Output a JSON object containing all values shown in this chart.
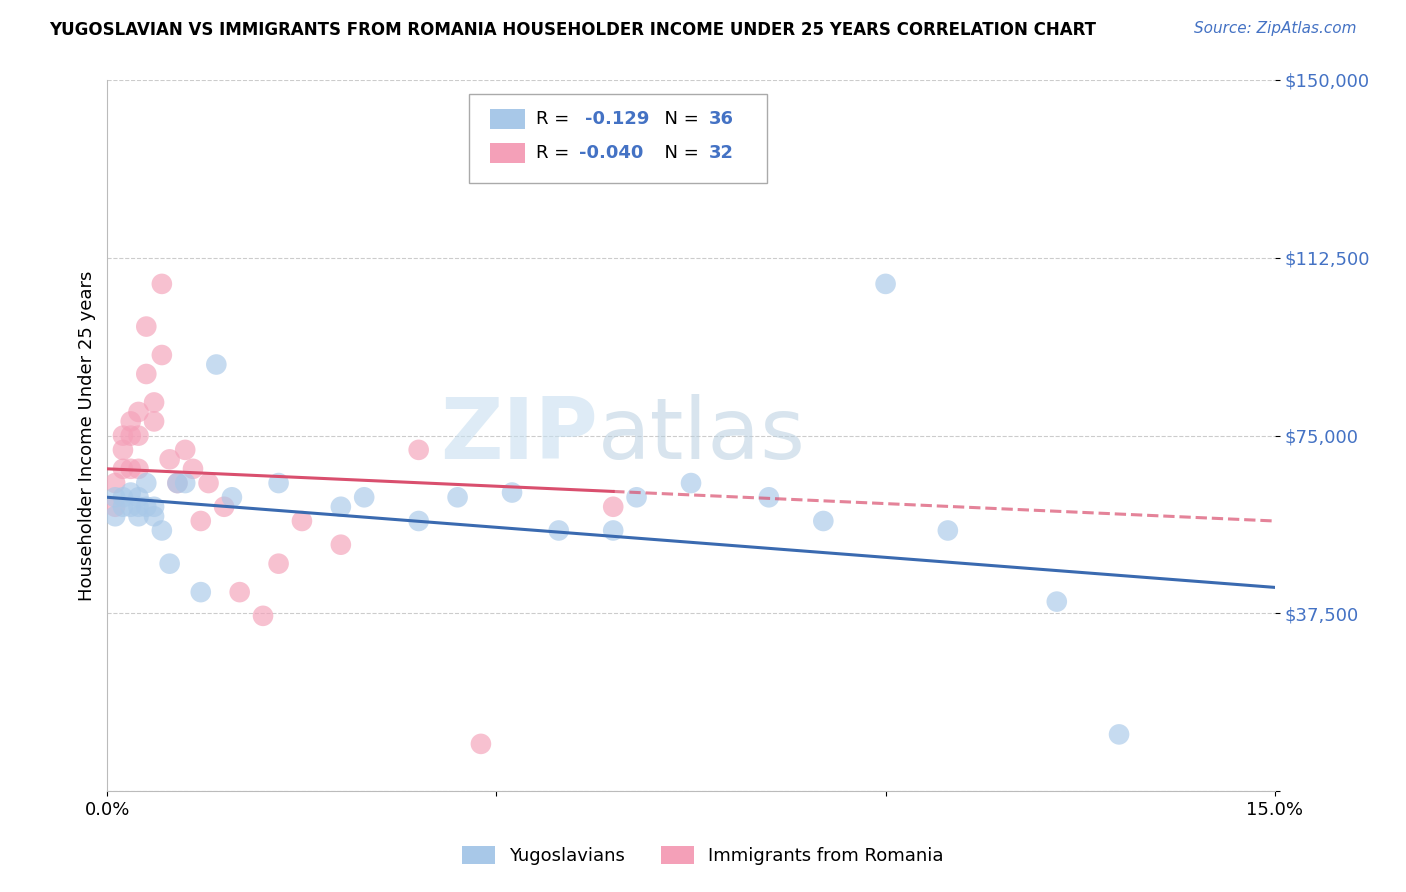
{
  "title": "YUGOSLAVIAN VS IMMIGRANTS FROM ROMANIA HOUSEHOLDER INCOME UNDER 25 YEARS CORRELATION CHART",
  "source": "Source: ZipAtlas.com",
  "ylabel": "Householder Income Under 25 years",
  "xlim": [
    0,
    0.15
  ],
  "ylim": [
    0,
    150000
  ],
  "yticks": [
    0,
    37500,
    75000,
    112500,
    150000
  ],
  "xtick_positions": [
    0,
    0.05,
    0.1,
    0.15
  ],
  "xtick_labels": [
    "0.0%",
    "",
    "",
    "15.0%"
  ],
  "watermark_zip": "ZIP",
  "watermark_atlas": "atlas",
  "legend_label1": "Yugoslavians",
  "legend_label2": "Immigrants from Romania",
  "blue_color": "#a8c8e8",
  "pink_color": "#f4a0b8",
  "blue_line_color": "#3a6ab0",
  "pink_line_color": "#d94f6e",
  "accent_color": "#4472c4",
  "R_blue_text": "-0.129",
  "N_blue_text": "36",
  "R_pink_text": "-0.040",
  "N_pink_text": "32",
  "blue_x": [
    0.001,
    0.001,
    0.002,
    0.002,
    0.003,
    0.003,
    0.004,
    0.004,
    0.004,
    0.005,
    0.005,
    0.006,
    0.006,
    0.007,
    0.008,
    0.009,
    0.01,
    0.012,
    0.014,
    0.016,
    0.022,
    0.03,
    0.033,
    0.04,
    0.045,
    0.052,
    0.058,
    0.065,
    0.068,
    0.075,
    0.085,
    0.092,
    0.1,
    0.108,
    0.122,
    0.13
  ],
  "blue_y": [
    62000,
    58000,
    62000,
    60000,
    63000,
    60000,
    62000,
    60000,
    58000,
    65000,
    60000,
    60000,
    58000,
    55000,
    48000,
    65000,
    65000,
    42000,
    90000,
    62000,
    65000,
    60000,
    62000,
    57000,
    62000,
    63000,
    55000,
    55000,
    62000,
    65000,
    62000,
    57000,
    107000,
    55000,
    40000,
    12000
  ],
  "pink_x": [
    0.001,
    0.001,
    0.002,
    0.002,
    0.002,
    0.003,
    0.003,
    0.003,
    0.004,
    0.004,
    0.004,
    0.005,
    0.005,
    0.006,
    0.006,
    0.007,
    0.007,
    0.008,
    0.009,
    0.01,
    0.011,
    0.012,
    0.013,
    0.015,
    0.017,
    0.02,
    0.022,
    0.025,
    0.03,
    0.04,
    0.048,
    0.065
  ],
  "pink_y": [
    60000,
    65000,
    68000,
    72000,
    75000,
    75000,
    78000,
    68000,
    75000,
    68000,
    80000,
    88000,
    98000,
    82000,
    78000,
    92000,
    107000,
    70000,
    65000,
    72000,
    68000,
    57000,
    65000,
    60000,
    42000,
    37000,
    48000,
    57000,
    52000,
    72000,
    10000,
    60000
  ]
}
